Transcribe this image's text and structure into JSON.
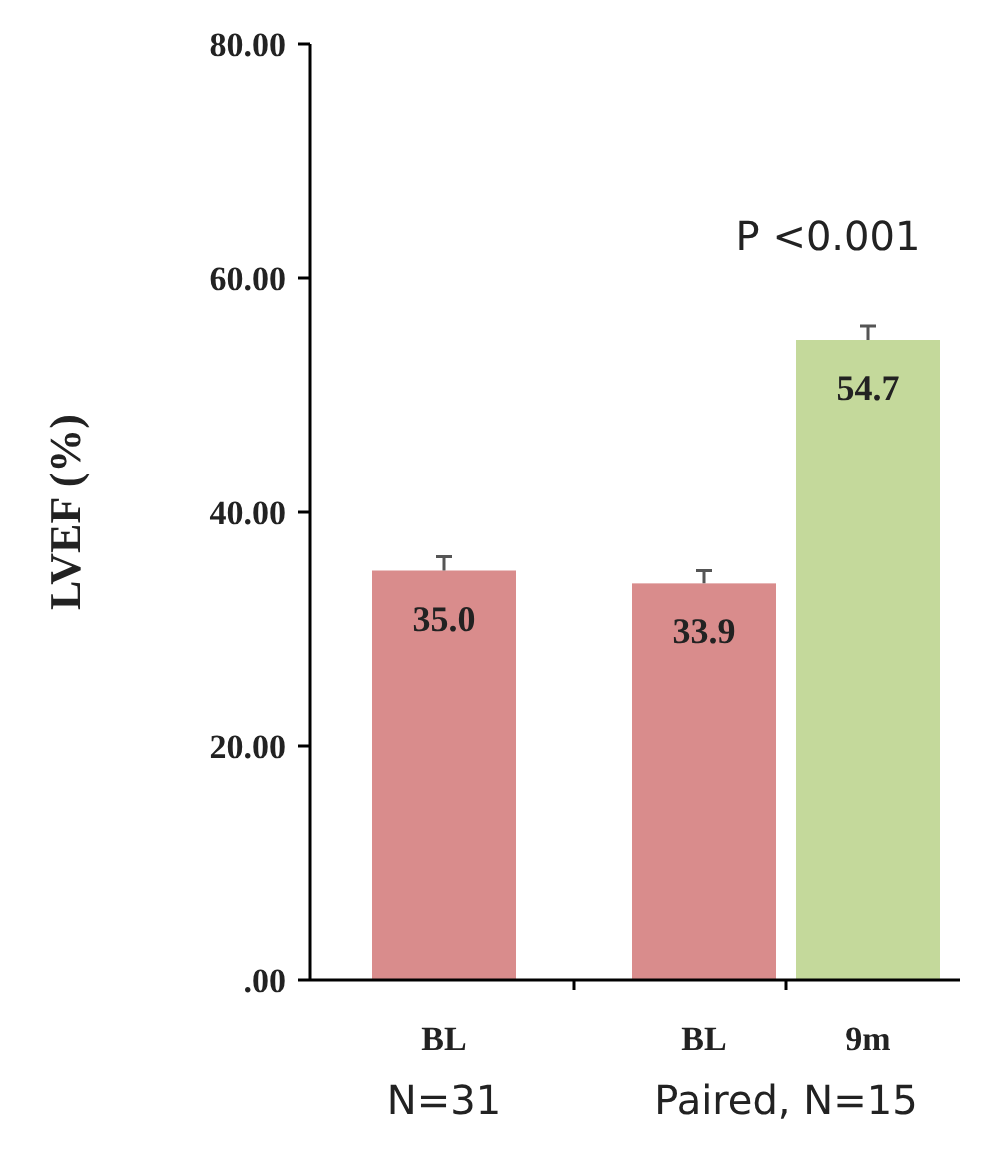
{
  "chart_data": {
    "type": "bar",
    "ylabel": "LVEF (%)",
    "categories": [
      "BL",
      "BL",
      "9m"
    ],
    "values": [
      35.0,
      33.9,
      54.7
    ],
    "colors": [
      "#d98c8c",
      "#d98c8c",
      "#c4d99b"
    ],
    "errors": [
      [
        35.0,
        36.2
      ],
      [
        33.9,
        35.0
      ],
      [
        54.7,
        55.9
      ]
    ],
    "value_labels": [
      "35.0",
      "33.9",
      "54.7"
    ],
    "ylim": [
      0,
      80
    ],
    "yticks": [
      {
        "value": 0,
        "label": ".00"
      },
      {
        "value": 20,
        "label": "20.00"
      },
      {
        "value": 40,
        "label": "40.00"
      },
      {
        "value": 60,
        "label": "60.00"
      },
      {
        "value": 80,
        "label": "80.00"
      }
    ],
    "annotations": [
      "N=31",
      "Paired, N=15",
      "P <0.001"
    ],
    "grid": false
  }
}
